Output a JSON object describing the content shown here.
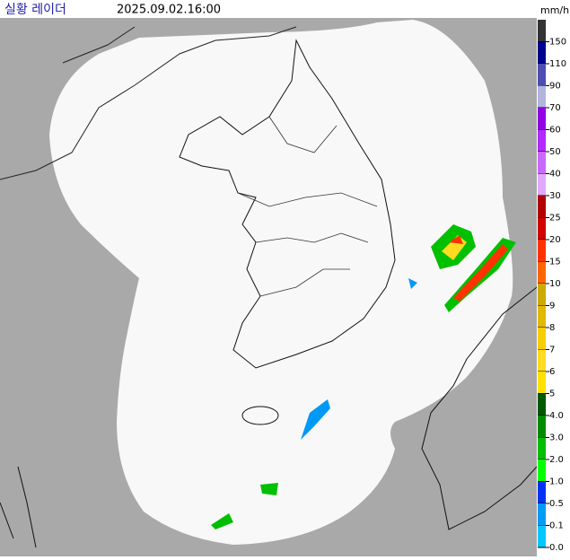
{
  "header": {
    "title": "실황 레이더",
    "timestamp": "2025.09.02.16:00",
    "unit": "mm/h"
  },
  "legend": {
    "items": [
      {
        "label": "150",
        "color": "#333333"
      },
      {
        "label": "110",
        "color": "#000390"
      },
      {
        "label": "90",
        "color": "#4c4eb1"
      },
      {
        "label": "70",
        "color": "#b3b4de"
      },
      {
        "label": "60",
        "color": "#9300e4"
      },
      {
        "label": "50",
        "color": "#b329ff"
      },
      {
        "label": "40",
        "color": "#c969ff"
      },
      {
        "label": "30",
        "color": "#e0a9ff"
      },
      {
        "label": "25",
        "color": "#b40000"
      },
      {
        "label": "20",
        "color": "#d20000"
      },
      {
        "label": "15",
        "color": "#ff3200"
      },
      {
        "label": "10",
        "color": "#ff6600"
      },
      {
        "label": "9",
        "color": "#ccaa00"
      },
      {
        "label": "8",
        "color": "#e0b900"
      },
      {
        "label": "7",
        "color": "#f9cd00"
      },
      {
        "label": "6",
        "color": "#ffdc1f"
      },
      {
        "label": "5",
        "color": "#ffe100"
      },
      {
        "label": "4.0",
        "color": "#005a00"
      },
      {
        "label": "3.0",
        "color": "#008c00"
      },
      {
        "label": "2.0",
        "color": "#00be00"
      },
      {
        "label": "1.0",
        "color": "#00ff00"
      },
      {
        "label": "0.5",
        "color": "#0033f5"
      },
      {
        "label": "0.1",
        "color": "#009bf5"
      },
      {
        "label": "0.0",
        "color": "#00c8ff"
      }
    ]
  }
}
